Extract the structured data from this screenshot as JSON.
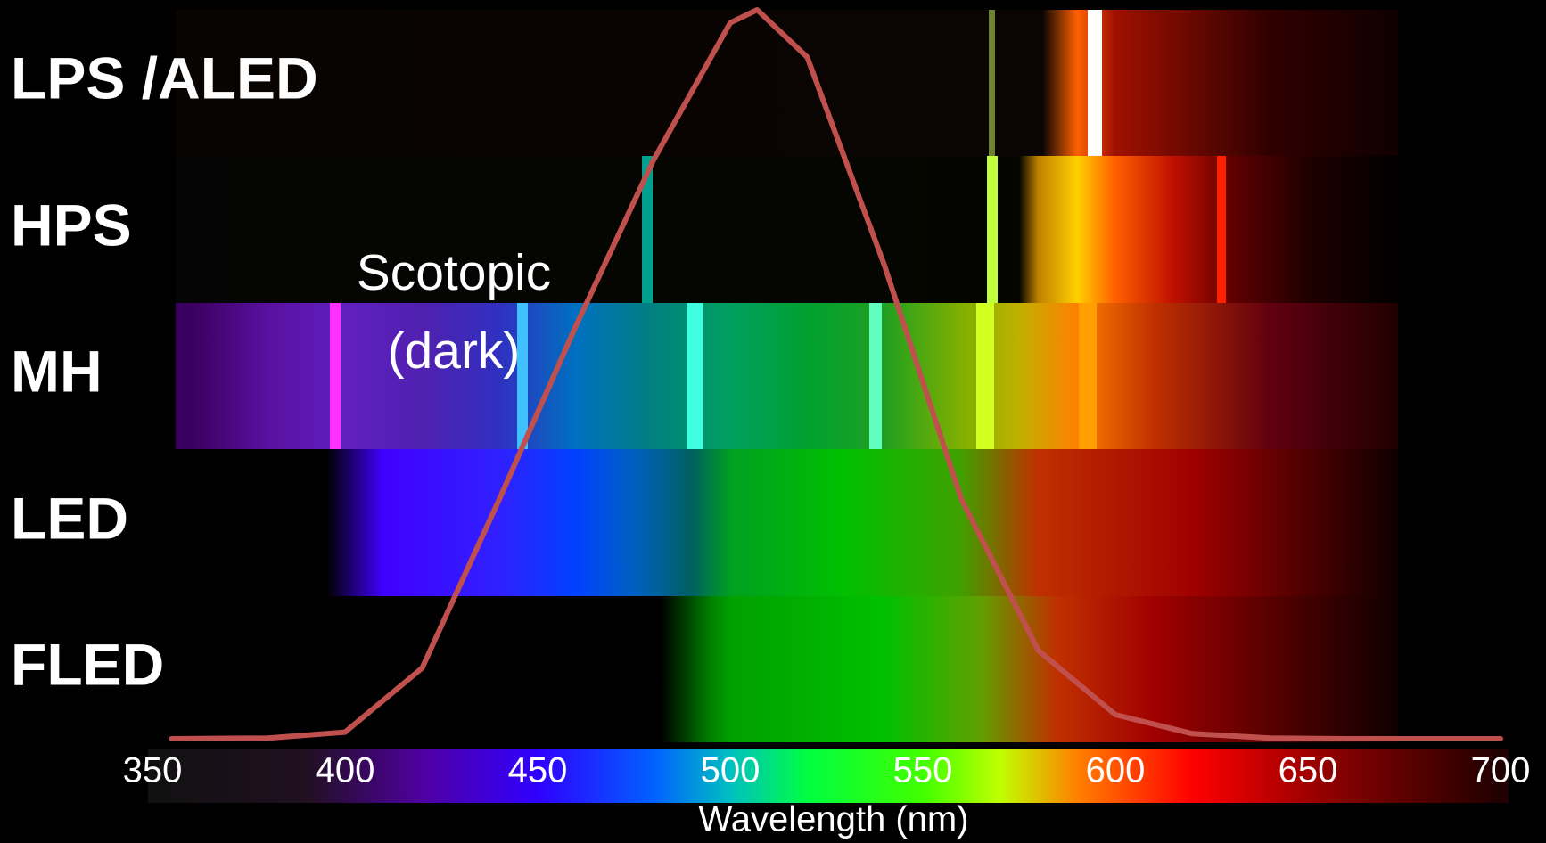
{
  "chart_data": {
    "type": "line",
    "row_labels": [
      "LPS /ALED",
      "HPS",
      "MH",
      "LED",
      "FLED"
    ],
    "annotation": [
      "Scotopic",
      "(dark)"
    ],
    "x_label": "Wavelength (nm)",
    "x": [
      355,
      380,
      400,
      420,
      440,
      460,
      480,
      500,
      507,
      520,
      540,
      560,
      580,
      600,
      620,
      640,
      660,
      680,
      700
    ],
    "series": [
      {
        "color": "#c0504d",
        "values": [
          0.0,
          0.001,
          0.009,
          0.097,
          0.328,
          0.567,
          0.793,
          0.982,
          1.0,
          0.935,
          0.65,
          0.329,
          0.121,
          0.033,
          0.007,
          0.001,
          0.0,
          0.0,
          0.0
        ]
      }
    ],
    "xlim": [
      350,
      700
    ],
    "xticks": [
      350,
      400,
      450,
      500,
      550,
      600,
      650,
      700
    ],
    "ylim": [
      0,
      1
    ]
  }
}
